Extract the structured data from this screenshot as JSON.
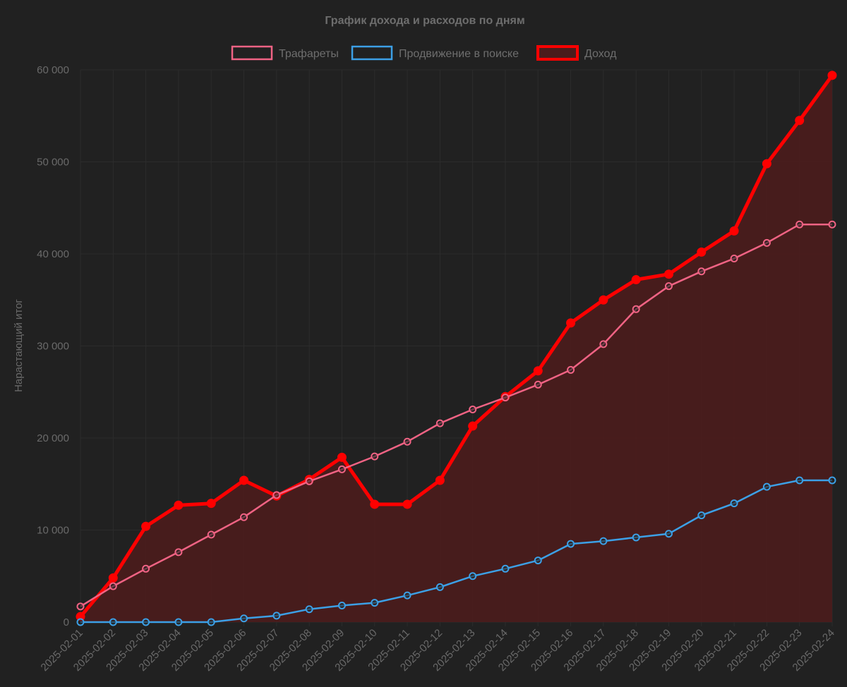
{
  "chart_data": {
    "type": "line",
    "title": "График дохода и расходов по дням",
    "ylabel": "Нарастающий итог",
    "xlabel": "",
    "ylim": [
      0,
      60000
    ],
    "y_ticks": [
      0,
      10000,
      20000,
      30000,
      40000,
      50000,
      60000
    ],
    "y_tick_labels": [
      "0",
      "10 000",
      "20 000",
      "30 000",
      "40 000",
      "50 000",
      "60 000"
    ],
    "grid": true,
    "legend_position": "top",
    "categories": [
      "2025-02-01",
      "2025-02-02",
      "2025-02-03",
      "2025-02-04",
      "2025-02-05",
      "2025-02-06",
      "2025-02-07",
      "2025-02-08",
      "2025-02-09",
      "2025-02-10",
      "2025-02-11",
      "2025-02-12",
      "2025-02-13",
      "2025-02-14",
      "2025-02-15",
      "2025-02-16",
      "2025-02-17",
      "2025-02-18",
      "2025-02-19",
      "2025-02-20",
      "2025-02-21",
      "2025-02-22",
      "2025-02-23",
      "2025-02-24"
    ],
    "series": [
      {
        "name": "Трафареты",
        "color": "#f06384",
        "fill": false,
        "values": [
          1700,
          3900,
          5800,
          7600,
          9500,
          11400,
          13800,
          15300,
          16600,
          18000,
          19600,
          21600,
          23100,
          24400,
          25800,
          27400,
          30200,
          34000,
          36500,
          38100,
          39500,
          41200,
          43200,
          43200
        ]
      },
      {
        "name": "Продвижение в поиске",
        "color": "#3ca0e6",
        "fill": false,
        "values": [
          0,
          0,
          0,
          0,
          0,
          400,
          700,
          1400,
          1800,
          2100,
          2900,
          3800,
          5000,
          5800,
          6700,
          8500,
          8800,
          9200,
          9600,
          11600,
          12900,
          14700,
          15400,
          15400
        ]
      },
      {
        "name": "Доход",
        "color": "#ff0000",
        "fill": true,
        "fill_color": "#4a1c1c",
        "values": [
          600,
          4800,
          10400,
          12700,
          12900,
          15400,
          13700,
          15500,
          17900,
          12800,
          12800,
          15400,
          21300,
          24500,
          27300,
          32500,
          35000,
          37200,
          37800,
          40200,
          42500,
          49800,
          54500,
          59400
        ]
      }
    ]
  }
}
